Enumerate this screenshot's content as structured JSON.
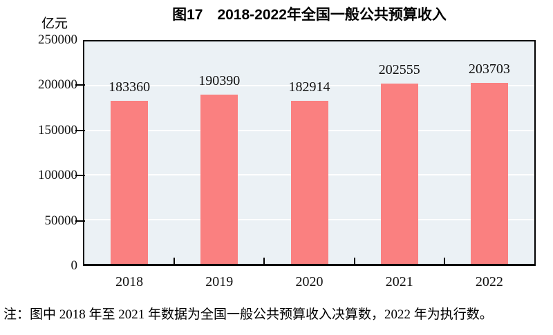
{
  "chart_data": {
    "type": "bar",
    "title": "图17　2018-2022年全国一般公共预算收入",
    "ylabel_unit": "亿元",
    "categories": [
      "2018",
      "2019",
      "2020",
      "2021",
      "2022"
    ],
    "values": [
      183360,
      190390,
      182914,
      202555,
      203703
    ],
    "ylim": [
      0,
      250000
    ],
    "yticks": [
      0,
      50000,
      100000,
      150000,
      200000,
      250000
    ],
    "grid": "horizontal-white-lines",
    "legend_position": "none",
    "bar_color": "#fa8080",
    "plot_background": "#ebf1f5",
    "axis_color": "#000000"
  },
  "note": "注：图中 2018 年至 2021 年数据为全国一般公共预算收入决算数，2022 年为执行数。"
}
